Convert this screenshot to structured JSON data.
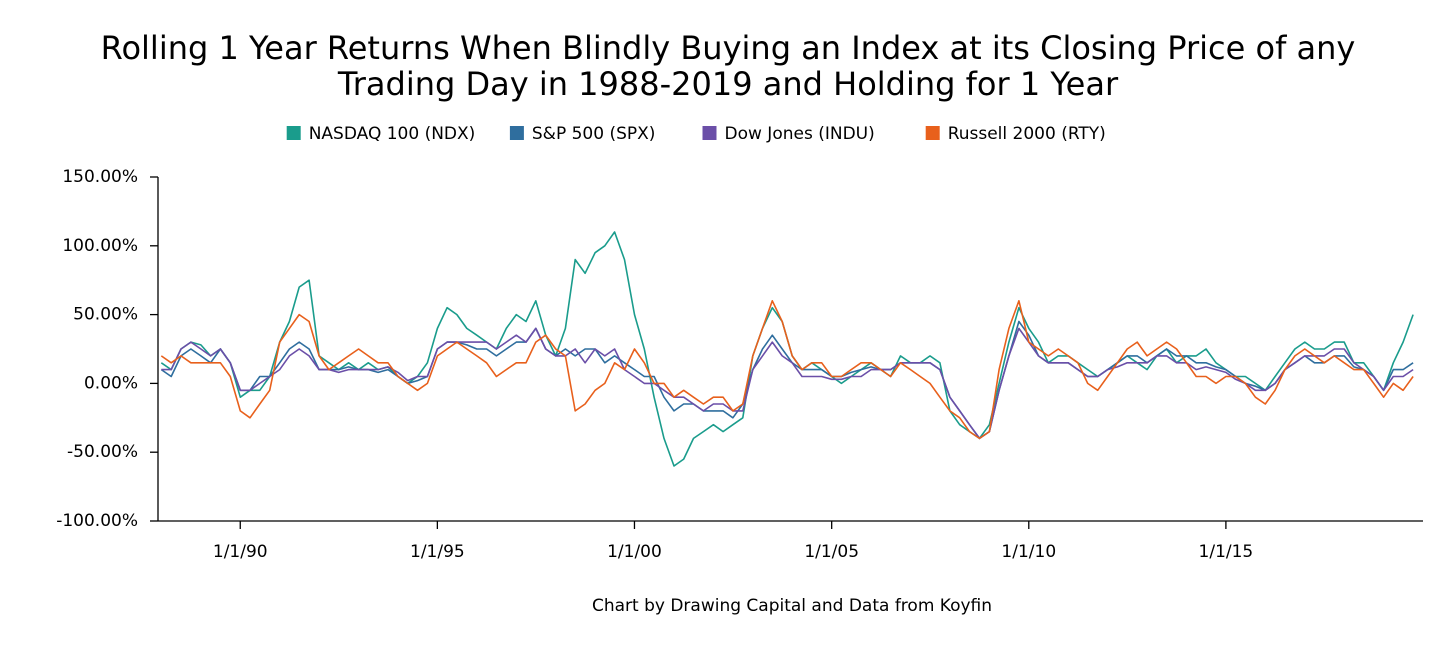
{
  "chart_data": {
    "type": "line",
    "title": "Rolling 1 Year Returns When Blindly Buying an Index at its Closing Price of any Trading Day in 1988-2019 and Holding for 1 Year",
    "caption": "Chart by Drawing Capital and Data from Koyfin",
    "x": [
      "1988-01-01",
      "1988-04-01",
      "1988-07-01",
      "1988-10-01",
      "1989-01-01",
      "1989-04-01",
      "1989-07-01",
      "1989-10-01",
      "1990-01-01",
      "1990-04-01",
      "1990-07-01",
      "1990-10-01",
      "1991-01-01",
      "1991-04-01",
      "1991-07-01",
      "1991-10-01",
      "1992-01-01",
      "1992-04-01",
      "1992-07-01",
      "1992-10-01",
      "1993-01-01",
      "1993-04-01",
      "1993-07-01",
      "1993-10-01",
      "1994-01-01",
      "1994-04-01",
      "1994-07-01",
      "1994-10-01",
      "1995-01-01",
      "1995-04-01",
      "1995-07-01",
      "1995-10-01",
      "1996-01-01",
      "1996-04-01",
      "1996-07-01",
      "1996-10-01",
      "1997-01-01",
      "1997-04-01",
      "1997-07-01",
      "1997-10-01",
      "1998-01-01",
      "1998-04-01",
      "1998-07-01",
      "1998-10-01",
      "1999-01-01",
      "1999-04-01",
      "1999-07-01",
      "1999-10-01",
      "2000-01-01",
      "2000-04-01",
      "2000-07-01",
      "2000-10-01",
      "2001-01-01",
      "2001-04-01",
      "2001-07-01",
      "2001-10-01",
      "2002-01-01",
      "2002-04-01",
      "2002-07-01",
      "2002-10-01",
      "2003-01-01",
      "2003-04-01",
      "2003-07-01",
      "2003-10-01",
      "2004-01-01",
      "2004-04-01",
      "2004-07-01",
      "2004-10-01",
      "2005-01-01",
      "2005-04-01",
      "2005-07-01",
      "2005-10-01",
      "2006-01-01",
      "2006-04-01",
      "2006-07-01",
      "2006-10-01",
      "2007-01-01",
      "2007-04-01",
      "2007-07-01",
      "2007-10-01",
      "2008-01-01",
      "2008-04-01",
      "2008-07-01",
      "2008-10-01",
      "2009-01-01",
      "2009-04-01",
      "2009-07-01",
      "2009-10-01",
      "2010-01-01",
      "2010-04-01",
      "2010-07-01",
      "2010-10-01",
      "2011-01-01",
      "2011-04-01",
      "2011-07-01",
      "2011-10-01",
      "2012-01-01",
      "2012-04-01",
      "2012-07-01",
      "2012-10-01",
      "2013-01-01",
      "2013-04-01",
      "2013-07-01",
      "2013-10-01",
      "2014-01-01",
      "2014-04-01",
      "2014-07-01",
      "2014-10-01",
      "2015-01-01",
      "2015-04-01",
      "2015-07-01",
      "2015-10-01",
      "2016-01-01",
      "2016-04-01",
      "2016-07-01",
      "2016-10-01",
      "2017-01-01",
      "2017-04-01",
      "2017-07-01",
      "2017-10-01",
      "2018-01-01",
      "2018-04-01",
      "2018-07-01",
      "2018-10-01",
      "2019-01-01",
      "2019-04-01",
      "2019-07-01",
      "2019-10-01"
    ],
    "series": [
      {
        "name": "NASDAQ 100 (NDX)",
        "color": "#1a9c8c",
        "values": [
          15,
          10,
          25,
          30,
          28,
          20,
          25,
          15,
          -10,
          -5,
          -5,
          5,
          30,
          45,
          70,
          75,
          20,
          15,
          10,
          15,
          10,
          15,
          10,
          12,
          5,
          0,
          5,
          15,
          40,
          55,
          50,
          40,
          35,
          30,
          25,
          40,
          50,
          45,
          60,
          35,
          20,
          40,
          90,
          80,
          95,
          100,
          110,
          90,
          50,
          25,
          -10,
          -40,
          -60,
          -55,
          -40,
          -35,
          -30,
          -35,
          -30,
          -25,
          20,
          40,
          55,
          45,
          20,
          10,
          15,
          10,
          5,
          0,
          5,
          10,
          15,
          10,
          5,
          20,
          15,
          15,
          20,
          15,
          -20,
          -30,
          -35,
          -40,
          -30,
          0,
          30,
          55,
          40,
          30,
          15,
          20,
          20,
          15,
          10,
          5,
          10,
          15,
          20,
          15,
          10,
          20,
          25,
          15,
          20,
          20,
          25,
          15,
          10,
          5,
          5,
          0,
          -5,
          5,
          15,
          25,
          30,
          25,
          25,
          30,
          30,
          15,
          15,
          5,
          -5,
          15,
          30,
          50
        ]
      },
      {
        "name": "S&P 500 (SPX)",
        "color": "#2f6e9e",
        "values": [
          10,
          5,
          20,
          25,
          20,
          15,
          25,
          15,
          -5,
          -5,
          5,
          5,
          15,
          25,
          30,
          25,
          10,
          10,
          10,
          12,
          10,
          10,
          8,
          10,
          5,
          0,
          2,
          5,
          25,
          30,
          30,
          28,
          25,
          25,
          20,
          25,
          30,
          30,
          40,
          25,
          20,
          25,
          20,
          25,
          25,
          15,
          20,
          15,
          10,
          5,
          5,
          -10,
          -20,
          -15,
          -15,
          -20,
          -20,
          -20,
          -25,
          -15,
          10,
          25,
          35,
          25,
          15,
          10,
          10,
          10,
          5,
          5,
          8,
          10,
          12,
          10,
          10,
          15,
          15,
          15,
          15,
          10,
          -10,
          -20,
          -30,
          -40,
          -35,
          -5,
          20,
          45,
          35,
          20,
          15,
          15,
          15,
          10,
          5,
          5,
          10,
          15,
          20,
          20,
          15,
          20,
          25,
          20,
          20,
          15,
          15,
          12,
          10,
          5,
          0,
          -2,
          -5,
          0,
          10,
          15,
          20,
          15,
          15,
          20,
          20,
          12,
          10,
          5,
          -5,
          10,
          10,
          15
        ]
      },
      {
        "name": "Dow Jones (INDU)",
        "color": "#6b4fa8",
        "values": [
          10,
          10,
          25,
          30,
          25,
          20,
          25,
          15,
          -5,
          -5,
          0,
          5,
          10,
          20,
          25,
          20,
          10,
          10,
          8,
          10,
          10,
          10,
          10,
          12,
          8,
          2,
          5,
          5,
          25,
          30,
          30,
          30,
          30,
          30,
          25,
          30,
          35,
          30,
          40,
          25,
          20,
          20,
          25,
          15,
          25,
          20,
          25,
          10,
          5,
          0,
          0,
          -5,
          -10,
          -10,
          -15,
          -20,
          -15,
          -15,
          -20,
          -20,
          10,
          20,
          30,
          20,
          15,
          5,
          5,
          5,
          3,
          3,
          5,
          5,
          10,
          10,
          10,
          15,
          15,
          15,
          15,
          10,
          -10,
          -20,
          -30,
          -40,
          -35,
          -5,
          20,
          40,
          30,
          20,
          15,
          15,
          15,
          10,
          5,
          5,
          10,
          12,
          15,
          15,
          15,
          20,
          20,
          15,
          15,
          10,
          12,
          10,
          8,
          3,
          0,
          -5,
          -5,
          0,
          10,
          15,
          20,
          20,
          20,
          25,
          25,
          15,
          10,
          5,
          -5,
          5,
          5,
          10
        ]
      },
      {
        "name": "Russell 2000 (RTY)",
        "color": "#e8601c",
        "values": [
          20,
          15,
          20,
          15,
          15,
          15,
          15,
          5,
          -20,
          -25,
          -15,
          -5,
          30,
          40,
          50,
          45,
          20,
          10,
          15,
          20,
          25,
          20,
          15,
          15,
          5,
          0,
          -5,
          0,
          20,
          25,
          30,
          25,
          20,
          15,
          5,
          10,
          15,
          15,
          30,
          35,
          25,
          20,
          -20,
          -15,
          -5,
          0,
          15,
          10,
          25,
          15,
          0,
          0,
          -10,
          -5,
          -10,
          -15,
          -10,
          -10,
          -20,
          -15,
          20,
          40,
          60,
          45,
          20,
          10,
          15,
          15,
          5,
          5,
          10,
          15,
          15,
          10,
          5,
          15,
          10,
          5,
          0,
          -10,
          -20,
          -25,
          -35,
          -40,
          -35,
          10,
          40,
          60,
          30,
          25,
          20,
          25,
          20,
          15,
          0,
          -5,
          5,
          15,
          25,
          30,
          20,
          25,
          30,
          25,
          15,
          5,
          5,
          0,
          5,
          5,
          0,
          -10,
          -15,
          -5,
          10,
          20,
          25,
          20,
          15,
          20,
          15,
          10,
          10,
          0,
          -10,
          0,
          -5,
          5
        ]
      }
    ],
    "xlim": [
      "1987-12-01",
      "2020-01-01"
    ],
    "xticks": [
      {
        "value": "1990-01-01",
        "label": "1/1/90"
      },
      {
        "value": "1995-01-01",
        "label": "1/1/95"
      },
      {
        "value": "2000-01-01",
        "label": "1/1/00"
      },
      {
        "value": "2005-01-01",
        "label": "1/1/05"
      },
      {
        "value": "2010-01-01",
        "label": "1/1/10"
      },
      {
        "value": "2015-01-01",
        "label": "1/1/15"
      }
    ],
    "ylim": [
      -100,
      150
    ],
    "yticks": [
      {
        "value": -100,
        "label": "-100.00%"
      },
      {
        "value": -50,
        "label": "-50.00%"
      },
      {
        "value": 0,
        "label": "0.00%"
      },
      {
        "value": 50,
        "label": "50.00%"
      },
      {
        "value": 100,
        "label": "100.00%"
      },
      {
        "value": 150,
        "label": "150.00%"
      }
    ],
    "grid": false,
    "legend": "top"
  }
}
